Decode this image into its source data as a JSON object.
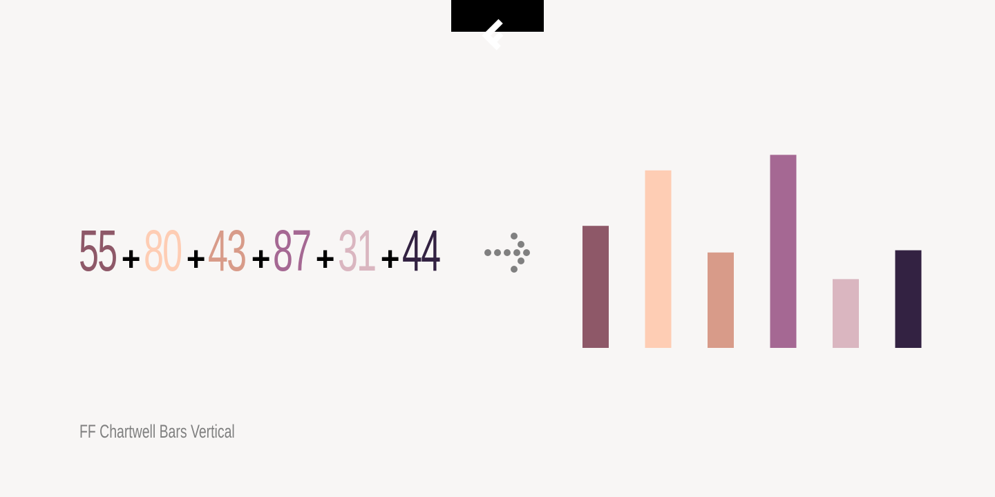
{
  "logo": {
    "icon": "fontshop-f-logo-icon",
    "background": "#000000"
  },
  "equation": {
    "numbers": [
      {
        "text": "55",
        "color": "#8e5868"
      },
      {
        "text": "80",
        "color": "#fecdb4"
      },
      {
        "text": "43",
        "color": "#d89b89"
      },
      {
        "text": "87",
        "color": "#a56893"
      },
      {
        "text": "31",
        "color": "#dab6c0"
      },
      {
        "text": "44",
        "color": "#332242"
      }
    ],
    "operator": "+"
  },
  "arrow": {
    "icon": "dotted-arrow-right-icon",
    "color": "#808080"
  },
  "caption": "FF Chartwell Bars Vertical",
  "chart_data": {
    "type": "bar",
    "values": [
      55,
      80,
      43,
      87,
      31,
      44
    ],
    "colors": [
      "#8e5868",
      "#fecdb4",
      "#d89b89",
      "#a56893",
      "#dab6c0",
      "#332242"
    ],
    "ylim": [
      0,
      100
    ],
    "grid": false,
    "legend": "none"
  }
}
